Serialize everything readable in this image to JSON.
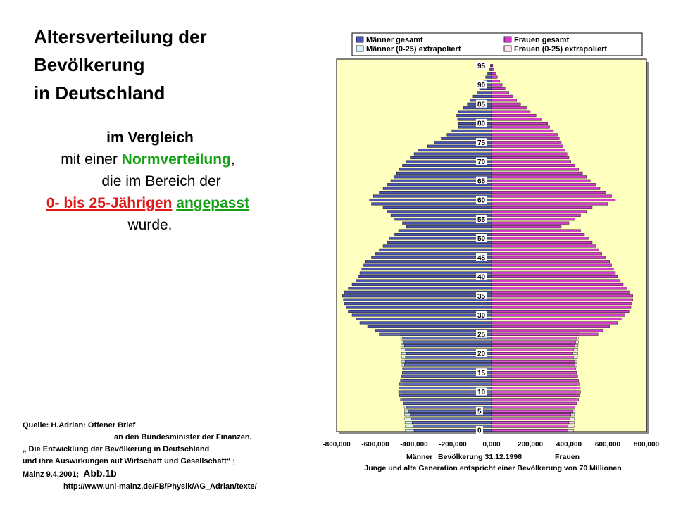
{
  "heading": {
    "line1": "Altersverteilung der",
    "line2": "Bevölkerung",
    "line3": "in Deutschland"
  },
  "subtitle": {
    "line1": "im Vergleich",
    "line2_pre": "mit einer ",
    "line2_green": "Normverteilung",
    "line2_post": ",",
    "line3": "die im Bereich der",
    "line4_red": "0- bis 25-Jährigen",
    "line4_green": "angepasst",
    "line5": "wurde."
  },
  "source": {
    "line1": "Quelle: H.Adrian: Offener Brief",
    "line2": "an den Bundesminister der Finanzen.",
    "line3": "„ Die Entwicklung der Bevölkerung in Deutschland",
    "line4": "und ihre Auswirkungen auf Wirtschaft und Gesellschaft“ ;",
    "line5_date": "Mainz 9.4.2001;",
    "line5_abb": "Abb.1b",
    "line6": "http://www.uni-mainz.de/FB/Physik/AG_Adrian/texte/"
  },
  "colors": {
    "plot_bg": "#ffffc0",
    "male": "#4a54b4",
    "female": "#d63ad0",
    "male_extrap": "#d8eef8",
    "female_extrap": "#fbe2ee",
    "normal_text_green": "#14a014",
    "normal_text_red": "#e01818"
  },
  "chart_data": {
    "type": "bar",
    "orientation": "horizontal",
    "subtype": "population-pyramid",
    "legend": [
      "Männer gesamt",
      "Frauen gesamt",
      "Männer (0-25) extrapoliert",
      "Frauen (0-25) extrapoliert"
    ],
    "legend_position": "top",
    "xlim": [
      -800000,
      800000
    ],
    "x_ticks": [
      "-800,000",
      "-600,000",
      "-400,000",
      "-200,000",
      "0,000",
      "200,000",
      "400,000",
      "600,000",
      "800,000"
    ],
    "y_ticks": [
      "0",
      "5",
      "10",
      "15",
      "20",
      "25",
      "30",
      "35",
      "40",
      "45",
      "50",
      "55",
      "60",
      "65",
      "70",
      "75",
      "80",
      "85",
      "90",
      "95"
    ],
    "xlabel_left": "Männer",
    "xlabel_center": "Bevölkerung 31.12.1998",
    "xlabel_right": "Frauen",
    "note": "Junge und alte Generation entspricht einer Bevölkerung von 70 Millionen",
    "grid": false,
    "ages": [
      0,
      1,
      2,
      3,
      4,
      5,
      6,
      7,
      8,
      9,
      10,
      11,
      12,
      13,
      14,
      15,
      16,
      17,
      18,
      19,
      20,
      21,
      22,
      23,
      24,
      25,
      26,
      27,
      28,
      29,
      30,
      31,
      32,
      33,
      34,
      35,
      36,
      37,
      38,
      39,
      40,
      41,
      42,
      43,
      44,
      45,
      46,
      47,
      48,
      49,
      50,
      51,
      52,
      53,
      54,
      55,
      56,
      57,
      58,
      59,
      60,
      61,
      62,
      63,
      64,
      65,
      66,
      67,
      68,
      69,
      70,
      71,
      72,
      73,
      74,
      75,
      76,
      77,
      78,
      79,
      80,
      81,
      82,
      83,
      84,
      85,
      86,
      87,
      88,
      89,
      90,
      91,
      92,
      93,
      94,
      95
    ],
    "series": [
      {
        "name": "Männer gesamt",
        "values": [
          400000,
          405000,
          410000,
          415000,
          420000,
          430000,
          440000,
          455000,
          470000,
          475000,
          480000,
          478000,
          475000,
          470000,
          465000,
          460000,
          455000,
          450000,
          447000,
          445000,
          440000,
          445000,
          450000,
          455000,
          460000,
          580000,
          600000,
          640000,
          680000,
          700000,
          720000,
          740000,
          750000,
          760000,
          765000,
          770000,
          760000,
          740000,
          720000,
          700000,
          690000,
          680000,
          670000,
          660000,
          650000,
          620000,
          600000,
          580000,
          560000,
          540000,
          530000,
          500000,
          480000,
          440000,
          460000,
          500000,
          520000,
          540000,
          560000,
          620000,
          630000,
          610000,
          580000,
          560000,
          540000,
          520000,
          505000,
          490000,
          475000,
          460000,
          440000,
          420000,
          400000,
          380000,
          330000,
          295000,
          260000,
          230000,
          205000,
          170000,
          170000,
          175000,
          180000,
          170000,
          145000,
          125000,
          110000,
          95000,
          75000,
          62000,
          50000,
          40000,
          30000,
          20000,
          12000,
          6000
        ]
      },
      {
        "name": "Frauen gesamt",
        "values": [
          390000,
          395000,
          400000,
          405000,
          410000,
          420000,
          430000,
          440000,
          450000,
          455000,
          460000,
          458000,
          455000,
          450000,
          445000,
          440000,
          435000,
          430000,
          427000,
          425000,
          420000,
          425000,
          430000,
          435000,
          440000,
          550000,
          575000,
          610000,
          650000,
          670000,
          690000,
          710000,
          720000,
          725000,
          730000,
          730000,
          715000,
          700000,
          680000,
          665000,
          650000,
          640000,
          630000,
          620000,
          610000,
          590000,
          570000,
          555000,
          540000,
          520000,
          500000,
          480000,
          460000,
          360000,
          400000,
          430000,
          460000,
          490000,
          520000,
          600000,
          640000,
          620000,
          590000,
          560000,
          540000,
          510000,
          490000,
          470000,
          450000,
          430000,
          410000,
          400000,
          390000,
          380000,
          370000,
          360000,
          350000,
          340000,
          320000,
          300000,
          290000,
          260000,
          230000,
          200000,
          180000,
          150000,
          130000,
          110000,
          90000,
          70000,
          55000,
          42000,
          30000,
          20000,
          12000,
          7000
        ]
      },
      {
        "name": "Männer (0-25) extrapoliert",
        "values": [
          445000,
          446000,
          447000,
          448000,
          449000,
          450000,
          451000,
          452000,
          453000,
          454000,
          455000,
          456000,
          457000,
          458000,
          459000,
          460000,
          461000,
          462000,
          463000,
          464000,
          465000,
          466000,
          467000,
          468000,
          469000,
          470000
        ]
      },
      {
        "name": "Frauen (0-25) extrapoliert",
        "values": [
          425000,
          426000,
          427000,
          428000,
          429000,
          430000,
          431000,
          432000,
          433000,
          434000,
          435000,
          436000,
          437000,
          438000,
          439000,
          440000,
          441000,
          442000,
          443000,
          444000,
          445000,
          446000,
          447000,
          448000,
          449000,
          450000
        ]
      }
    ]
  }
}
